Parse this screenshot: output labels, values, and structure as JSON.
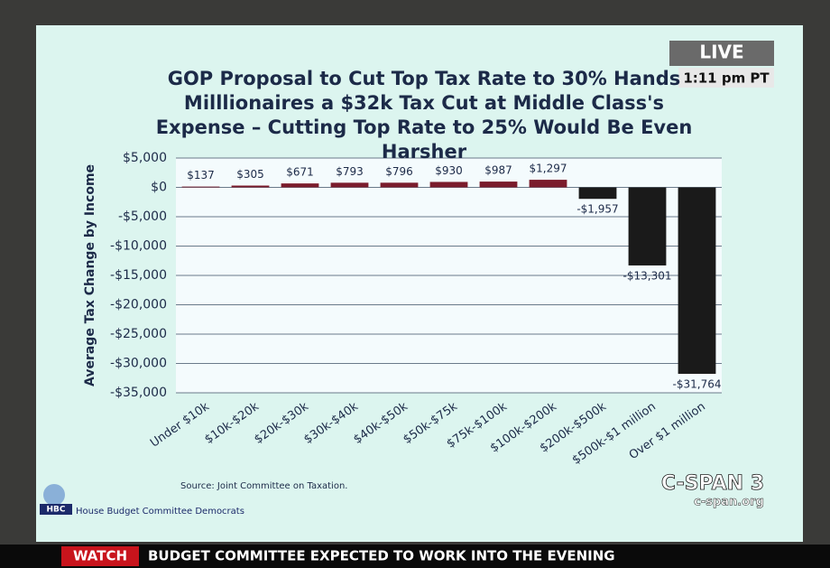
{
  "chart_data": {
    "type": "bar",
    "title": "GOP Proposal to Cut Top Tax Rate to 30% Hands Milllionaires a $32k Tax Cut at Middle Class's Expense – Cutting Top Rate to 25% Would Be Even Harsher",
    "y_label": "Average Tax Change by Income",
    "source": "Source: Joint Committee on Taxation.",
    "categories": [
      "Under $10k",
      "$10k-$20k",
      "$20k-$30k",
      "$30k-$40k",
      "$40k-$50k",
      "$50k-$75k",
      "$75k-$100k",
      "$100k-$200k",
      "$200k-$500k",
      "$500k-$1 million",
      "Over $1 million"
    ],
    "values": [
      137,
      305,
      671,
      793,
      796,
      930,
      987,
      1297,
      -1957,
      -13301,
      -31764
    ],
    "value_labels": [
      "$137",
      "$305",
      "$671",
      "$793",
      "$796",
      "$930",
      "$987",
      "$1,297",
      "-$1,957",
      "-$13,301",
      "-$31,764"
    ],
    "positive_color": "#7b1c2c",
    "negative_color": "#1a1a1a",
    "ylim": [
      -35000,
      5000
    ],
    "yticks": [
      {
        "value": 5000,
        "label": "$5,000"
      },
      {
        "value": 0,
        "label": "$0"
      },
      {
        "value": -5000,
        "label": "-$5,000"
      },
      {
        "value": -10000,
        "label": "-$10,000"
      },
      {
        "value": -15000,
        "label": "-$15,000"
      },
      {
        "value": -20000,
        "label": "-$20,000"
      },
      {
        "value": -25000,
        "label": "-$25,000"
      },
      {
        "value": -30000,
        "label": "-$30,000"
      },
      {
        "value": -35000,
        "label": "-$35,000"
      }
    ],
    "grid": true
  },
  "logo": {
    "initials": "HBC",
    "name": "House Budget Committee Democrats"
  },
  "overlay": {
    "live": "LIVE",
    "time": "1:11 pm PT",
    "network": "C-SPAN 3",
    "website": "c-span.org",
    "watch": "WATCH",
    "ticker": "BUDGET COMMITTEE EXPECTED TO WORK INTO THE EVENING"
  }
}
